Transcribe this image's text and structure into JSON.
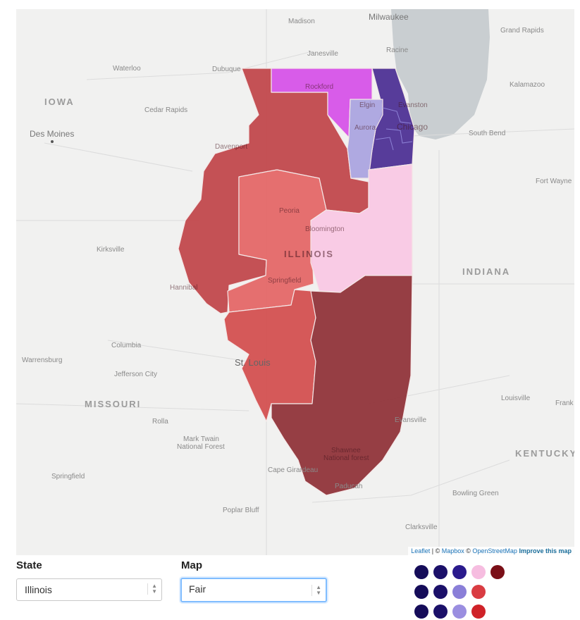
{
  "map": {
    "state_label": "ILLINOIS",
    "labels": {
      "milwaukee": "Milwaukee",
      "madison": "Madison",
      "grand_rapids": "Grand Rapids",
      "janesville": "Janesville",
      "racine": "Racine",
      "waterloo": "Waterloo",
      "dubuque": "Dubuque",
      "rockford": "Rockford",
      "kalamazoo": "Kalamazoo",
      "iowa": "IOWA",
      "cedar_rapids": "Cedar Rapids",
      "elgin": "Elgin",
      "evanston": "Evanston",
      "chicago": "Chicago",
      "des_moines": "Des Moines",
      "aurora": "Aurora",
      "south_bend": "South Bend",
      "davenport": "Davenport",
      "fort_wayne": "Fort Wayne",
      "peoria": "Peoria",
      "bloomington": "Bloomington",
      "kirksville": "Kirksville",
      "illinois": "ILLINOIS",
      "indiana": "INDIANA",
      "hannibal": "Hannibal",
      "springfield_il": "Springfield",
      "columbia": "Columbia",
      "warrensburg": "Warrensburg",
      "st_louis": "St. Louis",
      "jefferson_city": "Jefferson City",
      "missouri": "MISSOURI",
      "louisville": "Louisville",
      "frankfort": "Frank",
      "rolla": "Rolla",
      "evansville": "Evansville",
      "mark_twain": "Mark Twain",
      "national_forest": "National Forest",
      "kentucky": "KENTUCKY",
      "shawnee": "Shawnee",
      "shawnee_nf": "National forest",
      "springfield_mo": "Springfield",
      "cape_girardeau": "Cape Girardeau",
      "paducah": "Paducah",
      "bowling_green": "Bowling Green",
      "poplar_bluff": "Poplar Bluff",
      "clarksville": "Clarksville"
    },
    "districts": [
      {
        "id": "d1",
        "color": "#c04348"
      },
      {
        "id": "d2",
        "color": "#d64fe8"
      },
      {
        "id": "d3",
        "color": "#4a2c92"
      },
      {
        "id": "d4",
        "color": "#a9a3e0"
      },
      {
        "id": "d5",
        "color": "#e46464"
      },
      {
        "id": "d6",
        "color": "#fac8e4"
      },
      {
        "id": "d7",
        "color": "#d24c4c"
      },
      {
        "id": "d8",
        "color": "#8e2f35"
      }
    ],
    "attribution": {
      "leaflet": "Leaflet",
      "sep1": " | © ",
      "mapbox": "Mapbox",
      "sep2": " © ",
      "osm": "OpenStreetMap",
      "improve": "Improve this map"
    }
  },
  "controls": {
    "state_label": "State",
    "state_value": "Illinois",
    "map_label": "Map",
    "map_value": "Fair"
  },
  "legend_dots": [
    [
      "#150c59",
      "#1b1069",
      "#2a1a8c",
      "#f6bde0",
      "#7a0f17"
    ],
    [
      "#150c59",
      "#1b1069",
      "#8a7fd8",
      "#d93c42"
    ],
    [
      "#150c59",
      "#1b1069",
      "#9a8ee0",
      "#cf2228"
    ]
  ]
}
